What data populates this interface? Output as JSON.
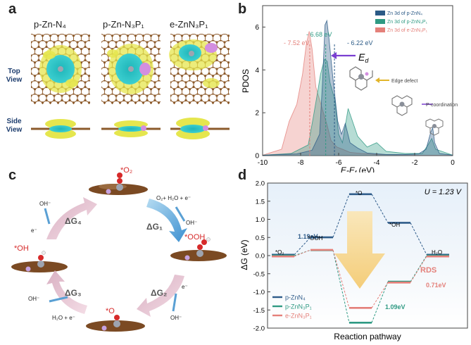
{
  "panel_a": {
    "letter": "a",
    "titles": [
      "p-Zn-N₄",
      "p-Zn-N₃P₁",
      "e-ZnN₃P₁"
    ],
    "row_labels": [
      [
        "Top",
        "View"
      ],
      [
        "Side",
        "View"
      ]
    ]
  },
  "panel_b": {
    "letter": "b",
    "ed_label": "E",
    "ed_sub": "d",
    "annotations": {
      "edge": "Edge defect",
      "pcoord": "P-coordination"
    },
    "peak_labels": [
      "- 7.52 eV",
      "- 6.68 eV",
      "- 6.22 eV"
    ]
  },
  "panel_c": {
    "letter": "c",
    "intermediates": [
      "*O₂",
      "*OOH",
      "*O",
      "*OH"
    ],
    "steps": [
      "ΔG₁",
      "ΔG₂",
      "ΔG₃",
      "ΔG₄"
    ],
    "reactions": {
      "in1": "O₂+ H₂O + e⁻",
      "out1": "OH⁻",
      "in2": "e⁻",
      "out2": "OH⁻",
      "in3": "H₂O + e⁻",
      "out3": "OH⁻",
      "in4": "e⁻",
      "out4": "OH⁻"
    }
  },
  "panel_d": {
    "letter": "d",
    "condition": "U = 1.23 V",
    "rds": "RDS",
    "values": {
      "v1": "1.19eV",
      "v2": "1.09eV",
      "v3": "0.71eV"
    },
    "state_labels": [
      "*O₂",
      "*OOH",
      "*O",
      "*OH",
      "H₂O"
    ]
  },
  "chart_data": [
    {
      "type": "area",
      "xlabel": "E-E",
      "xlabel_sub": "f",
      "xlabel_unit": " (eV)",
      "ylabel": "PDOS",
      "xlim": [
        -10,
        0
      ],
      "ylim": [
        0,
        7
      ],
      "xticks": [
        -10,
        -8,
        -6,
        -4,
        -2,
        0
      ],
      "yticks": [
        0,
        2,
        4,
        6
      ],
      "legend_position": "top-right",
      "series": [
        {
          "name": "Zn 3d of p-ZnN₄",
          "color": "#2b5a86",
          "x": [
            -10,
            -8.2,
            -7.4,
            -7.0,
            -6.85,
            -6.72,
            -6.62,
            -6.5,
            -6.3,
            -6.05,
            -5.85,
            -5.65,
            -5.4,
            -5.0,
            -4.5,
            -3.5,
            -2.5,
            -1.8,
            -1.4,
            -1.15,
            -1.05,
            -0.95,
            -0.7,
            0
          ],
          "y": [
            0.02,
            0.08,
            0.25,
            1.0,
            3.4,
            6.1,
            6.3,
            5.4,
            3.6,
            1.6,
            1.0,
            1.5,
            0.6,
            0.35,
            0.12,
            0.05,
            0.05,
            0.08,
            0.3,
            1.1,
            1.3,
            0.6,
            0.1,
            0.02
          ]
        },
        {
          "name": "Zn 3d of p-ZnN₃P₁",
          "color": "#2f9a83",
          "x": [
            -10,
            -8.5,
            -7.6,
            -7.35,
            -7.1,
            -6.95,
            -6.75,
            -6.6,
            -6.45,
            -6.2,
            -6.0,
            -5.8,
            -5.5,
            -5.0,
            -4.5,
            -4.0,
            -3.5,
            -2.5,
            -1.6,
            -1.3,
            -1.1,
            -0.9,
            0
          ],
          "y": [
            0.02,
            0.1,
            0.5,
            1.7,
            3.0,
            3.8,
            4.5,
            4.4,
            3.4,
            2.6,
            1.0,
            0.6,
            2.2,
            0.9,
            0.4,
            0.6,
            0.2,
            0.1,
            0.1,
            0.5,
            0.8,
            0.3,
            0.02
          ]
        },
        {
          "name": "Zn 3d of e-ZnN₃P₁",
          "color": "#e4807a",
          "x": [
            -10,
            -9.0,
            -8.6,
            -8.2,
            -7.9,
            -7.7,
            -7.55,
            -7.4,
            -7.2,
            -7.0,
            -6.8,
            -6.6,
            -6.4,
            -6.1,
            -5.8,
            -5.4,
            -4.8,
            -4.0,
            -3.0,
            -2.0,
            0
          ],
          "y": [
            0.02,
            0.3,
            1.6,
            2.4,
            3.8,
            5.2,
            5.8,
            5.0,
            3.2,
            2.6,
            2.0,
            1.4,
            0.7,
            0.4,
            0.3,
            0.15,
            0.1,
            0.05,
            0.03,
            0.02,
            0.02
          ]
        }
      ]
    },
    {
      "type": "line",
      "xlabel": "Reaction pathway",
      "ylabel": "ΔG (eV)",
      "ylim": [
        -2.0,
        2.0
      ],
      "yticks": [
        -2.0,
        -1.5,
        -1.0,
        -0.5,
        0.0,
        0.5,
        1.0,
        1.5,
        2.0
      ],
      "categories": [
        "*O₂",
        "*OOH",
        "*O",
        "*OH",
        "H₂O"
      ],
      "legend_position": "bottom-left",
      "series": [
        {
          "name": "p-ZnN₄",
          "color": "#2f5c8a",
          "values": [
            0.0,
            0.48,
            1.67,
            0.88,
            0.0
          ]
        },
        {
          "name": "p-ZnN₃P₁",
          "color": "#2f9a83",
          "values": [
            0.0,
            0.15,
            -1.85,
            -0.72,
            0.0
          ]
        },
        {
          "name": "e-ZnN₃P₁",
          "color": "#e4807a",
          "values": [
            0.0,
            0.18,
            -1.42,
            -0.72,
            0.0
          ]
        }
      ]
    }
  ]
}
